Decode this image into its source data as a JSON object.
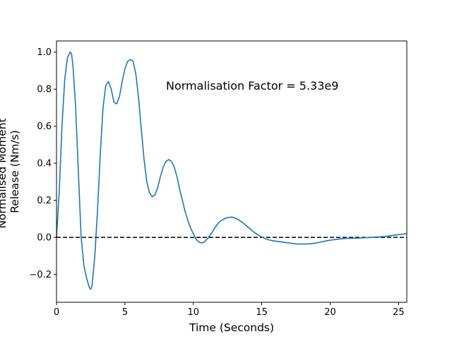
{
  "chart_data": {
    "type": "line",
    "title": "",
    "xlabel": "Time (Seconds)",
    "ylabel_lines": [
      "Normalised Moment",
      "Release (Nm/s)"
    ],
    "xlim": [
      0,
      25.6
    ],
    "ylim": [
      -0.35,
      1.06
    ],
    "xticks": [
      0,
      5,
      10,
      15,
      20,
      25
    ],
    "yticks": [
      -0.2,
      0.0,
      0.2,
      0.4,
      0.6,
      0.8,
      1.0
    ],
    "ytick_labels": [
      "−0.2",
      "0.0",
      "0.2",
      "0.4",
      "0.6",
      "0.8",
      "1.0"
    ],
    "grid": false,
    "annotation": {
      "text": "Normalisation Factor = 5.33e9",
      "x": 8.0,
      "y": 0.81
    },
    "reference_line": {
      "y": 0.0,
      "style": "dashed",
      "color": "#000000"
    },
    "series": [
      {
        "color": "#1f77b4",
        "x": [
          0.0,
          0.2,
          0.4,
          0.6,
          0.8,
          1.0,
          1.1,
          1.2,
          1.4,
          1.6,
          1.8,
          2.0,
          2.2,
          2.4,
          2.5,
          2.6,
          2.8,
          3.0,
          3.2,
          3.4,
          3.6,
          3.8,
          4.0,
          4.2,
          4.4,
          4.6,
          4.8,
          5.0,
          5.2,
          5.4,
          5.6,
          5.8,
          6.0,
          6.2,
          6.4,
          6.6,
          6.8,
          7.0,
          7.2,
          7.4,
          7.6,
          7.8,
          8.0,
          8.2,
          8.4,
          8.6,
          8.8,
          9.0,
          9.2,
          9.4,
          9.6,
          9.8,
          10.0,
          10.2,
          10.4,
          10.6,
          10.8,
          11.0,
          11.2,
          11.4,
          11.6,
          11.8,
          12.0,
          12.4,
          12.8,
          13.2,
          13.6,
          14.0,
          14.4,
          14.8,
          15.2,
          15.6,
          16.0,
          16.5,
          17.0,
          17.5,
          18.0,
          18.5,
          19.0,
          19.5,
          20.0,
          20.5,
          21.0,
          22.0,
          23.0,
          24.0,
          24.5,
          25.0,
          25.6
        ],
        "y": [
          0.0,
          0.25,
          0.6,
          0.85,
          0.97,
          1.0,
          0.99,
          0.93,
          0.7,
          0.35,
          0.0,
          -0.15,
          -0.22,
          -0.27,
          -0.28,
          -0.26,
          -0.1,
          0.15,
          0.45,
          0.7,
          0.82,
          0.84,
          0.8,
          0.73,
          0.72,
          0.76,
          0.84,
          0.91,
          0.95,
          0.96,
          0.95,
          0.88,
          0.75,
          0.58,
          0.42,
          0.3,
          0.24,
          0.22,
          0.23,
          0.27,
          0.33,
          0.38,
          0.41,
          0.42,
          0.41,
          0.38,
          0.33,
          0.26,
          0.2,
          0.14,
          0.09,
          0.05,
          0.02,
          -0.01,
          -0.025,
          -0.03,
          -0.025,
          -0.01,
          0.01,
          0.03,
          0.055,
          0.075,
          0.09,
          0.105,
          0.11,
          0.1,
          0.08,
          0.055,
          0.03,
          0.01,
          -0.005,
          -0.015,
          -0.02,
          -0.025,
          -0.03,
          -0.035,
          -0.036,
          -0.035,
          -0.03,
          -0.022,
          -0.015,
          -0.01,
          -0.006,
          -0.004,
          0.0,
          0.005,
          0.01,
          0.015,
          0.02
        ]
      }
    ]
  }
}
